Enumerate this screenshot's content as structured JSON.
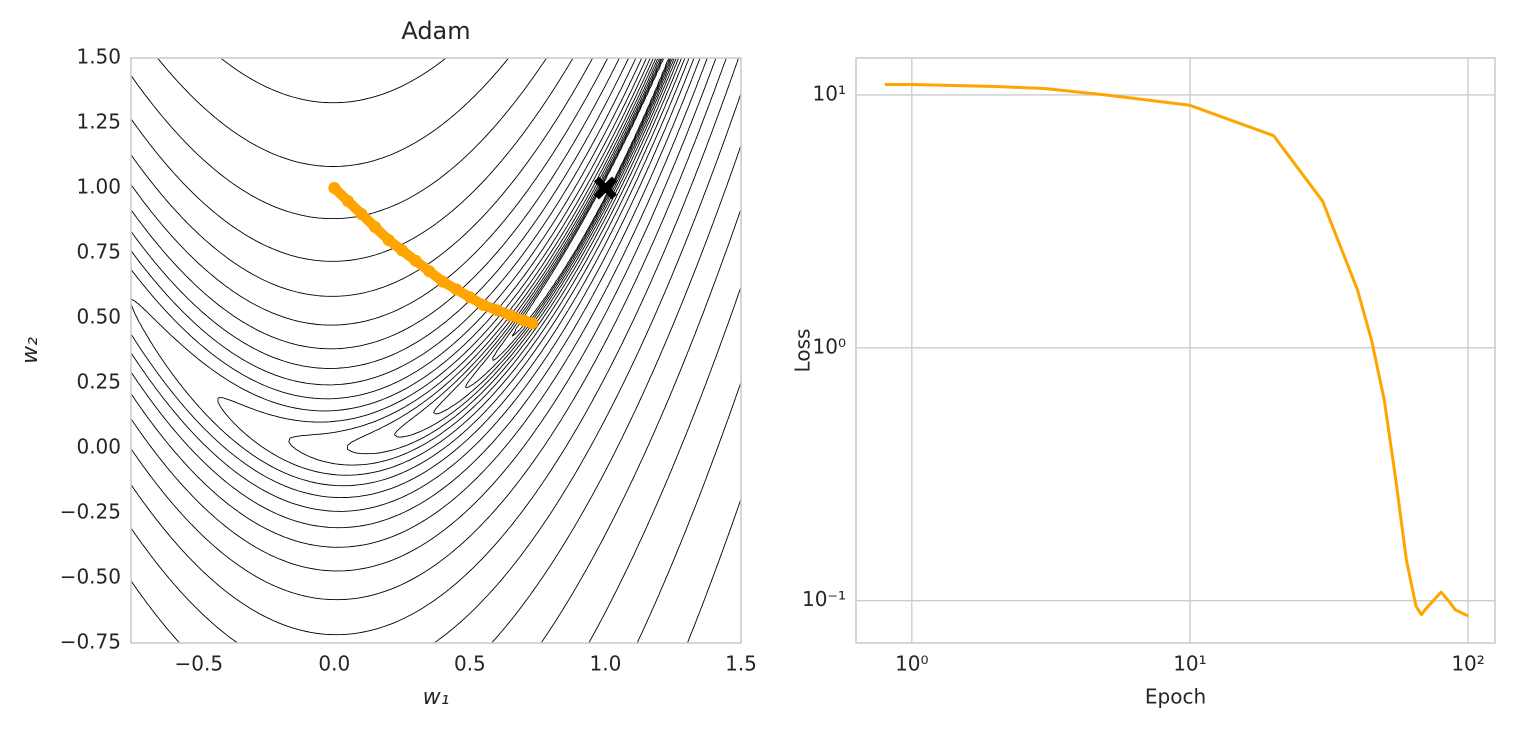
{
  "chart_data": [
    {
      "type": "contour",
      "title": "Adam",
      "x_label": "w₁",
      "y_label": "w₂",
      "xlim": [
        -0.75,
        1.5
      ],
      "ylim": [
        -0.75,
        1.5
      ],
      "xticks": [
        {
          "value": -0.5,
          "label": "−0.5"
        },
        {
          "value": 0,
          "label": "0.0"
        },
        {
          "value": 0.5,
          "label": "0.5"
        },
        {
          "value": 1,
          "label": "1.0"
        },
        {
          "value": 1.5,
          "label": "1.5"
        }
      ],
      "yticks": [
        {
          "value": -0.75,
          "label": "−0.75"
        },
        {
          "value": -0.5,
          "label": "−0.50"
        },
        {
          "value": -0.25,
          "label": "−0.25"
        },
        {
          "value": 0,
          "label": "0.00"
        },
        {
          "value": 0.25,
          "label": "0.25"
        },
        {
          "value": 0.5,
          "label": "0.50"
        },
        {
          "value": 0.75,
          "label": "0.75"
        },
        {
          "value": 1,
          "label": "1.00"
        },
        {
          "value": 1.25,
          "label": "1.25"
        },
        {
          "value": 1.5,
          "label": "1.50"
        }
      ],
      "path": {
        "color": "#ffa500",
        "x": [
          0,
          0.05,
          0.1,
          0.15,
          0.2,
          0.25,
          0.3,
          0.35,
          0.4,
          0.45,
          0.5,
          0.55,
          0.6,
          0.65,
          0.7,
          0.73
        ],
        "y": [
          1,
          0.95,
          0.9,
          0.85,
          0.8,
          0.76,
          0.72,
          0.68,
          0.64,
          0.61,
          0.58,
          0.55,
          0.53,
          0.51,
          0.49,
          0.48
        ]
      },
      "minimum": {
        "x": 1,
        "y": 1,
        "color": "#000000"
      }
    },
    {
      "type": "line",
      "x_label": "Epoch",
      "y_label": "Loss",
      "color": "#ffa500",
      "log_x": true,
      "log_y": true,
      "grid": true,
      "xlim": [
        0.63,
        125
      ],
      "ylim": [
        0.068,
        14
      ],
      "xticks": [
        {
          "value": 1,
          "label": "10⁰"
        },
        {
          "value": 10,
          "label": "10¹"
        },
        {
          "value": 100,
          "label": "10²"
        }
      ],
      "yticks": [
        {
          "value": 0.1,
          "label": "10⁻¹"
        },
        {
          "value": 1,
          "label": "10⁰"
        },
        {
          "value": 10,
          "label": "10¹"
        }
      ],
      "x": [
        0.8,
        1,
        2,
        3,
        5,
        10,
        20,
        30,
        40,
        45,
        50,
        55,
        60,
        65,
        68,
        70,
        75,
        80,
        85,
        90,
        100
      ],
      "values": [
        11.0,
        11.0,
        10.8,
        10.6,
        10.0,
        9.1,
        6.9,
        3.8,
        1.7,
        1.07,
        0.62,
        0.3,
        0.145,
        0.095,
        0.088,
        0.092,
        0.1,
        0.108,
        0.1,
        0.092,
        0.087
      ]
    }
  ]
}
